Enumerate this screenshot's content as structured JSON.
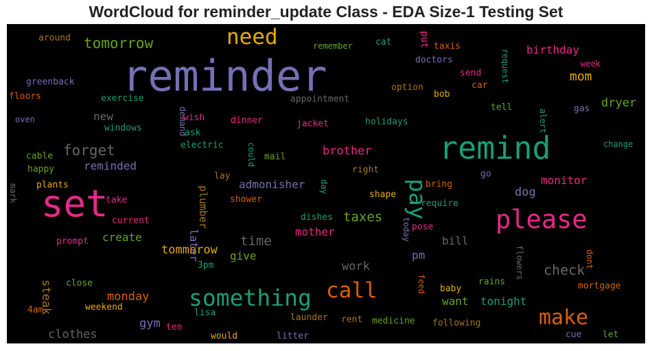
{
  "chart_data": {
    "type": "wordcloud",
    "title": "WordCloud for reminder_update Class - EDA Size-1 Testing Set",
    "background": "#000000",
    "grid": false,
    "legend": "none",
    "words": [
      {
        "text": "reminder",
        "weight": 100,
        "color": "#7570b3"
      },
      {
        "text": "set",
        "weight": 82,
        "color": "#e7298a"
      },
      {
        "text": "remind",
        "weight": 72,
        "color": "#1b9e77"
      },
      {
        "text": "please",
        "weight": 58,
        "color": "#e7298a"
      },
      {
        "text": "something",
        "weight": 54,
        "color": "#1b9e77"
      },
      {
        "text": "make",
        "weight": 50,
        "color": "#d95f02"
      },
      {
        "text": "call",
        "weight": 50,
        "color": "#d95f02"
      },
      {
        "text": "pay",
        "weight": 48,
        "color": "#1b9e77"
      },
      {
        "text": "need",
        "weight": 46,
        "color": "#e6ab02"
      },
      {
        "text": "tomorrow",
        "weight": 33,
        "color": "#66a61e"
      },
      {
        "text": "forget",
        "weight": 32,
        "color": "#666666"
      },
      {
        "text": "check",
        "weight": 31,
        "color": "#666666"
      },
      {
        "text": "taxes",
        "weight": 30,
        "color": "#66a61e"
      },
      {
        "text": "time",
        "weight": 30,
        "color": "#666666"
      },
      {
        "text": "brother",
        "weight": 29,
        "color": "#e7298a"
      },
      {
        "text": "monday",
        "weight": 29,
        "color": "#d95f02"
      },
      {
        "text": "dryer",
        "weight": 29,
        "color": "#66a61e"
      },
      {
        "text": "birthday",
        "weight": 27,
        "color": "#e7298a"
      },
      {
        "text": "mom",
        "weight": 27,
        "color": "#e6ab02"
      },
      {
        "text": "steak",
        "weight": 27,
        "color": "#a6761d"
      },
      {
        "text": "monitor",
        "weight": 27,
        "color": "#e7298a"
      },
      {
        "text": "mother",
        "weight": 27,
        "color": "#e7298a"
      },
      {
        "text": "tommorow",
        "weight": 27,
        "color": "#e6ab02"
      },
      {
        "text": "create",
        "weight": 27,
        "color": "#66a61e"
      },
      {
        "text": "reminded",
        "weight": 27,
        "color": "#7570b3"
      },
      {
        "text": "admonisher",
        "weight": 26,
        "color": "#7570b3"
      },
      {
        "text": "plumber",
        "weight": 26,
        "color": "#a6761d"
      },
      {
        "text": "later",
        "weight": 26,
        "color": "#7570b3"
      },
      {
        "text": "work",
        "weight": 26,
        "color": "#666666"
      },
      {
        "text": "want",
        "weight": 26,
        "color": "#66a61e"
      },
      {
        "text": "tonight",
        "weight": 26,
        "color": "#1b9e77"
      },
      {
        "text": "gym",
        "weight": 26,
        "color": "#7570b3"
      },
      {
        "text": "clothes",
        "weight": 26,
        "color": "#666666"
      },
      {
        "text": "give",
        "weight": 25,
        "color": "#66a61e"
      },
      {
        "text": "bill",
        "weight": 25,
        "color": "#666666"
      },
      {
        "text": "pm",
        "weight": 25,
        "color": "#7570b3"
      },
      {
        "text": "dog",
        "weight": 25,
        "color": "#7570b3"
      },
      {
        "text": "new",
        "weight": 25,
        "color": "#666666"
      },
      {
        "text": "put",
        "weight": 24,
        "color": "#e7298a"
      },
      {
        "text": "around",
        "weight": 22,
        "color": "#a6761d"
      },
      {
        "text": "remember",
        "weight": 22,
        "color": "#66a61e"
      },
      {
        "text": "cat",
        "weight": 22,
        "color": "#1b9e77"
      },
      {
        "text": "taxis",
        "weight": 22,
        "color": "#d95f02"
      },
      {
        "text": "doctors",
        "weight": 22,
        "color": "#7570b3"
      },
      {
        "text": "request",
        "weight": 22,
        "color": "#1b9e77"
      },
      {
        "text": "week",
        "weight": 22,
        "color": "#e7298a"
      },
      {
        "text": "greenback",
        "weight": 22,
        "color": "#7570b3"
      },
      {
        "text": "send",
        "weight": 22,
        "color": "#e7298a"
      },
      {
        "text": "car",
        "weight": 22,
        "color": "#d95f02"
      },
      {
        "text": "option",
        "weight": 22,
        "color": "#a6761d"
      },
      {
        "text": "bob",
        "weight": 22,
        "color": "#e6ab02"
      },
      {
        "text": "floors",
        "weight": 22,
        "color": "#d95f02"
      },
      {
        "text": "exercise",
        "weight": 22,
        "color": "#1b9e77"
      },
      {
        "text": "appointment",
        "weight": 22,
        "color": "#666666"
      },
      {
        "text": "demand",
        "weight": 22,
        "color": "#7570b3"
      },
      {
        "text": "wish",
        "weight": 22,
        "color": "#e7298a"
      },
      {
        "text": "tell",
        "weight": 22,
        "color": "#66a61e"
      },
      {
        "text": "gas",
        "weight": 22,
        "color": "#7570b3"
      },
      {
        "text": "alert",
        "weight": 22,
        "color": "#1b9e77"
      },
      {
        "text": "oven",
        "weight": 22,
        "color": "#7570b3"
      },
      {
        "text": "windows",
        "weight": 22,
        "color": "#1b9e77"
      },
      {
        "text": "dinner",
        "weight": 22,
        "color": "#e7298a"
      },
      {
        "text": "jacket",
        "weight": 22,
        "color": "#e7298a"
      },
      {
        "text": "holidays",
        "weight": 22,
        "color": "#1b9e77"
      },
      {
        "text": "ask",
        "weight": 22,
        "color": "#1b9e77"
      },
      {
        "text": "electric",
        "weight": 22,
        "color": "#1b9e77"
      },
      {
        "text": "change",
        "weight": 22,
        "color": "#1b9e77"
      },
      {
        "text": "cable",
        "weight": 22,
        "color": "#66a61e"
      },
      {
        "text": "could",
        "weight": 22,
        "color": "#1b9e77"
      },
      {
        "text": "mail",
        "weight": 22,
        "color": "#66a61e"
      },
      {
        "text": "happy",
        "weight": 22,
        "color": "#66a61e"
      },
      {
        "text": "right",
        "weight": 22,
        "color": "#a6761d"
      },
      {
        "text": "go",
        "weight": 22,
        "color": "#7570b3"
      },
      {
        "text": "mark",
        "weight": 22,
        "color": "#666666"
      },
      {
        "text": "plants",
        "weight": 22,
        "color": "#e6ab02"
      },
      {
        "text": "lay",
        "weight": 22,
        "color": "#a6761d"
      },
      {
        "text": "day",
        "weight": 22,
        "color": "#1b9e77"
      },
      {
        "text": "bring",
        "weight": 22,
        "color": "#d95f02"
      },
      {
        "text": "take",
        "weight": 22,
        "color": "#e7298a"
      },
      {
        "text": "shower",
        "weight": 22,
        "color": "#d95f02"
      },
      {
        "text": "shape",
        "weight": 22,
        "color": "#e6ab02"
      },
      {
        "text": "require",
        "weight": 22,
        "color": "#1b9e77"
      },
      {
        "text": "current",
        "weight": 22,
        "color": "#e7298a"
      },
      {
        "text": "dishes",
        "weight": 22,
        "color": "#1b9e77"
      },
      {
        "text": "today",
        "weight": 22,
        "color": "#7570b3"
      },
      {
        "text": "pose",
        "weight": 22,
        "color": "#e7298a"
      },
      {
        "text": "prompt",
        "weight": 22,
        "color": "#e7298a"
      },
      {
        "text": "3pm",
        "weight": 22,
        "color": "#1b9e77"
      },
      {
        "text": "flowers",
        "weight": 22,
        "color": "#666666"
      },
      {
        "text": "dont",
        "weight": 22,
        "color": "#d95f02"
      },
      {
        "text": "close",
        "weight": 22,
        "color": "#66a61e"
      },
      {
        "text": "feed",
        "weight": 22,
        "color": "#d95f02"
      },
      {
        "text": "baby",
        "weight": 22,
        "color": "#e6ab02"
      },
      {
        "text": "rains",
        "weight": 22,
        "color": "#66a61e"
      },
      {
        "text": "mortgage",
        "weight": 22,
        "color": "#d95f02"
      },
      {
        "text": "weekend",
        "weight": 22,
        "color": "#e6ab02"
      },
      {
        "text": "4am",
        "weight": 22,
        "color": "#d95f02"
      },
      {
        "text": "lisa",
        "weight": 22,
        "color": "#1b9e77"
      },
      {
        "text": "launder",
        "weight": 22,
        "color": "#a6761d"
      },
      {
        "text": "rent",
        "weight": 22,
        "color": "#a6761d"
      },
      {
        "text": "medicine",
        "weight": 22,
        "color": "#66a61e"
      },
      {
        "text": "following",
        "weight": 22,
        "color": "#a6761d"
      },
      {
        "text": "ten",
        "weight": 22,
        "color": "#e7298a"
      },
      {
        "text": "would",
        "weight": 22,
        "color": "#e6ab02"
      },
      {
        "text": "litter",
        "weight": 22,
        "color": "#7570b3"
      },
      {
        "text": "cue",
        "weight": 22,
        "color": "#7570b3"
      },
      {
        "text": "let",
        "weight": 22,
        "color": "#66a61e"
      }
    ]
  }
}
